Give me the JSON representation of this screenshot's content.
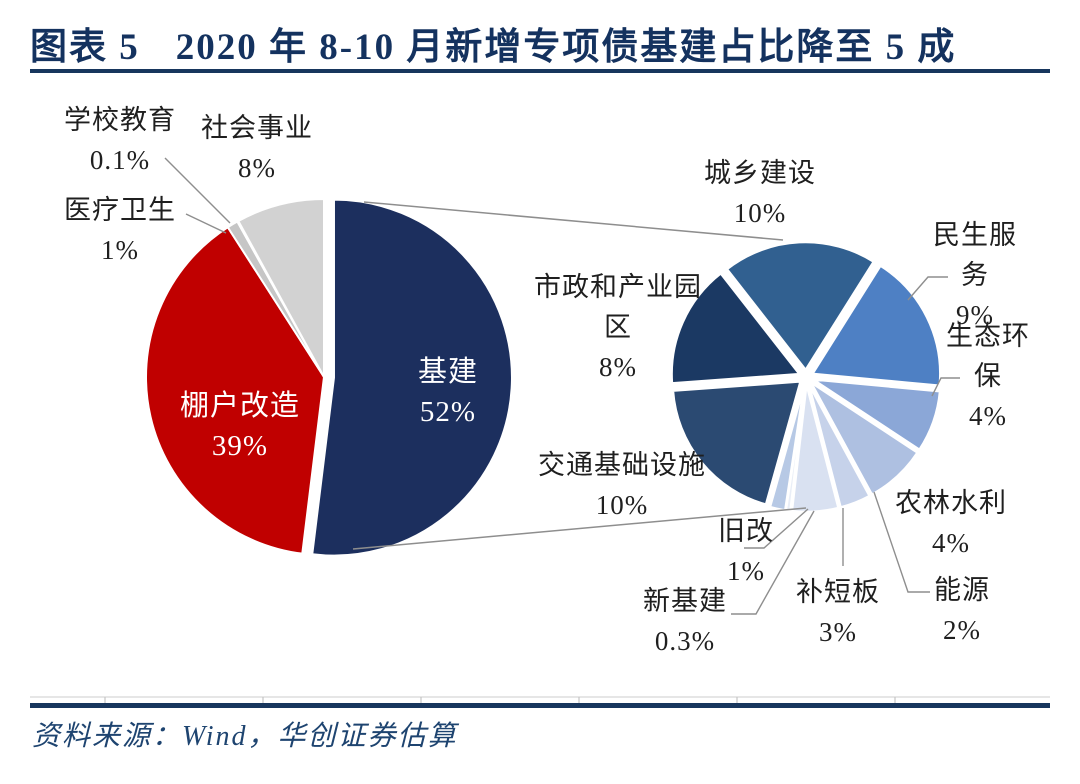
{
  "figure": {
    "label": "图表 5",
    "title": "2020 年 8-10 月新增专项债基建占比降至 5 成"
  },
  "source": {
    "text": "资料来源：Wind，华创证券估算"
  },
  "chart_data": {
    "type": "pie",
    "subtype": "pie-of-pie",
    "title": "2020 年 8-10 月新增专项债基建占比降至 5 成",
    "legend": "none",
    "units": "percent of new special bonds",
    "main_pie": {
      "slices": [
        {
          "label": "基建",
          "value_pct": 52,
          "display_value": "52%",
          "color": "#1C2F5E",
          "label_inside": true
        },
        {
          "label": "棚户改造",
          "value_pct": 39,
          "display_value": "39%",
          "color": "#C00000",
          "label_inside": true
        },
        {
          "label": "医疗卫生",
          "value_pct": 1,
          "display_value": "1%",
          "color": "#C6C6C6",
          "label_inside": false
        },
        {
          "label": "学校教育",
          "value_pct": 0.1,
          "display_value": "0.1%",
          "color": "#B3B3B3",
          "label_inside": false
        },
        {
          "label": "社会事业",
          "value_pct": 8,
          "display_value": "8%",
          "color": "#D2D2D2",
          "label_inside": false
        }
      ]
    },
    "secondary_pie": {
      "parent_slice": "基建",
      "slices": [
        {
          "label": "城乡建设",
          "value_pct": 10,
          "display_value": "10%",
          "color": "#316090"
        },
        {
          "label": "民生服务",
          "value_pct": 9,
          "display_value": "9%",
          "color": "#4E80C4"
        },
        {
          "label": "生态环保",
          "value_pct": 4,
          "display_value": "4%",
          "color": "#8BA7D7"
        },
        {
          "label": "农林水利",
          "value_pct": 4,
          "display_value": "4%",
          "color": "#AEC0E1"
        },
        {
          "label": "能源",
          "value_pct": 2,
          "display_value": "2%",
          "color": "#C6D2EA"
        },
        {
          "label": "补短板",
          "value_pct": 3,
          "display_value": "3%",
          "color": "#D9E1F1"
        },
        {
          "label": "新基建",
          "value_pct": 0.3,
          "display_value": "0.3%",
          "color": "#E9EEF7"
        },
        {
          "label": "旧改",
          "value_pct": 1,
          "display_value": "1%",
          "color": "#B7C9E5"
        },
        {
          "label": "交通基础设施",
          "value_pct": 10,
          "display_value": "10%",
          "color": "#2B4A72"
        },
        {
          "label": "市政和产业园区",
          "value_pct": 8,
          "display_value": "8%",
          "color": "#1B3963"
        }
      ]
    }
  }
}
